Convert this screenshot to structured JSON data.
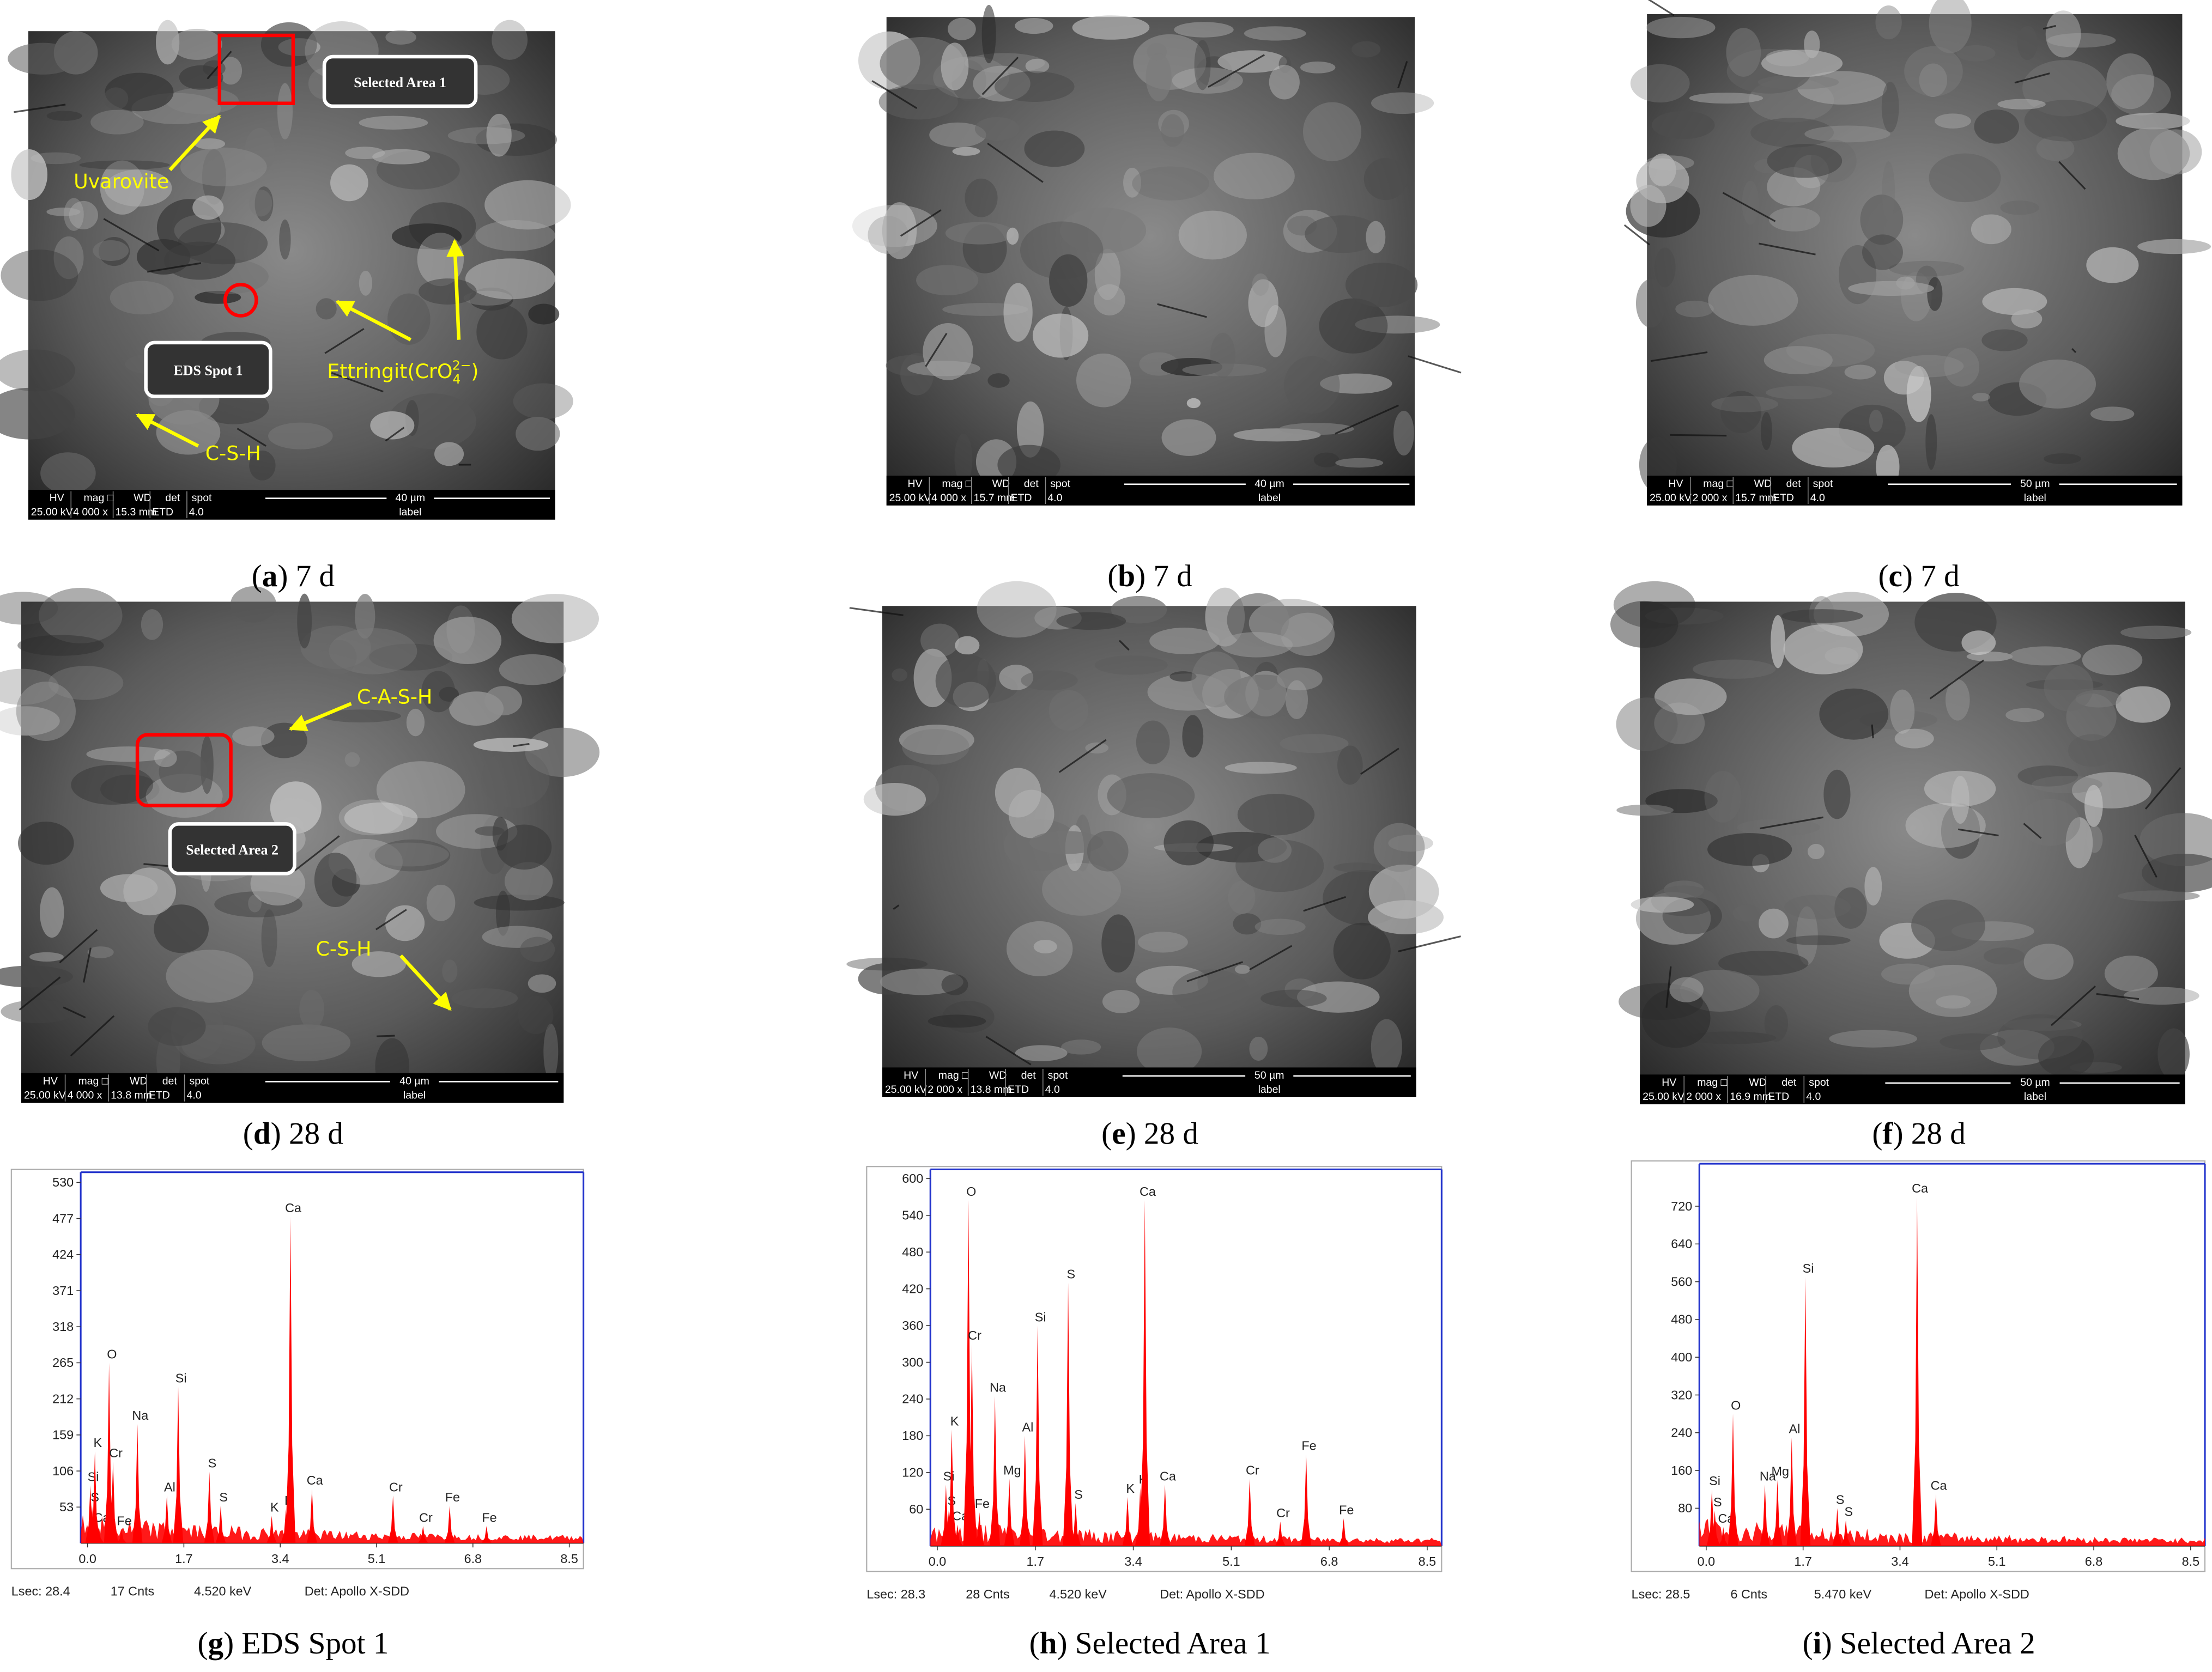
{
  "sem_panels": [
    {
      "scale_bar": {
        "headers": [
          "HV",
          "mag □",
          "WD",
          "det",
          "spot"
        ],
        "values": [
          "25.00 kV",
          "4 000 x",
          "15.3 mm",
          "ETD",
          "4.0"
        ],
        "scale": "40 µm",
        "label": "label"
      },
      "annotations": [
        "Selected Area 1",
        "Uvarovite",
        "EDS Spot 1",
        [
          "Ettringit(CrO",
          "4",
          "2−",
          ")"
        ],
        "C-S-H"
      ]
    },
    {
      "scale_bar": {
        "headers": [
          "HV",
          "mag □",
          "WD",
          "det",
          "spot"
        ],
        "values": [
          "25.00 kV",
          "4 000 x",
          "15.7 mm",
          "ETD",
          "4.0"
        ],
        "scale": "40 µm",
        "label": "label"
      }
    },
    {
      "scale_bar": {
        "headers": [
          "HV",
          "mag □",
          "WD",
          "det",
          "spot"
        ],
        "values": [
          "25.00 kV",
          "2 000 x",
          "15.7 mm",
          "ETD",
          "4.0"
        ],
        "scale": "50 µm",
        "label": "label"
      }
    },
    {
      "scale_bar": {
        "headers": [
          "HV",
          "mag □",
          "WD",
          "det",
          "spot"
        ],
        "values": [
          "25.00 kV",
          "4 000 x",
          "13.8 mm",
          "ETD",
          "4.0"
        ],
        "scale": "40 µm",
        "label": "label"
      },
      "annotations": [
        "C-A-S-H",
        "Selected Area 2",
        "C-S-H"
      ]
    },
    {
      "scale_bar": {
        "headers": [
          "HV",
          "mag □",
          "WD",
          "det",
          "spot"
        ],
        "values": [
          "25.00 kV",
          "2 000 x",
          "13.8 mm",
          "ETD",
          "4.0"
        ],
        "scale": "50 µm",
        "label": "label"
      }
    },
    {
      "scale_bar": {
        "headers": [
          "HV",
          "mag □",
          "WD",
          "det",
          "spot"
        ],
        "values": [
          "25.00 kV",
          "2 000 x",
          "16.9 mm",
          "ETD",
          "4.0"
        ],
        "scale": "50 µm",
        "label": "label"
      }
    }
  ],
  "captions": [
    [
      "(",
      "a",
      ") 7 d"
    ],
    [
      "(",
      "b",
      ") 7 d"
    ],
    [
      "(",
      "c",
      ") 7 d"
    ],
    [
      "(",
      "d",
      ") 28 d"
    ],
    [
      "(",
      "e",
      ") 28 d"
    ],
    [
      "(",
      "f",
      ") 28 d"
    ],
    [
      "(",
      "g",
      ") EDS Spot 1"
    ],
    [
      "(",
      "h",
      ") Selected Area 1"
    ],
    [
      "(",
      "i",
      ") Selected Area 2"
    ]
  ],
  "chart_data": [
    {
      "type": "spectrum",
      "color": "#ff0000",
      "xlim": [
        -0.12,
        8.75
      ],
      "xticks": [
        {
          "value": 0,
          "label": "0.0"
        },
        1.7,
        3.4,
        5.1,
        6.8,
        8.5
      ],
      "ylim": [
        0,
        545
      ],
      "yticks": [
        53,
        106,
        159,
        212,
        265,
        318,
        371,
        424,
        477,
        530
      ],
      "categories": [
        "Si",
        "S",
        "Ca",
        "K",
        "O",
        "Cr",
        "Fe",
        "Na",
        "Al",
        "Si",
        "S",
        "S",
        "K",
        "K",
        "Ca",
        "Ca",
        "Cr",
        "Cr",
        "Fe",
        "Fe"
      ],
      "x": [
        0.05,
        0.08,
        0.2,
        0.13,
        0.38,
        0.45,
        0.6,
        0.88,
        1.4,
        1.6,
        2.15,
        2.35,
        3.25,
        3.5,
        3.58,
        3.96,
        5.39,
        5.92,
        6.39,
        7.04
      ],
      "values": [
        85,
        55,
        25,
        135,
        265,
        120,
        20,
        175,
        70,
        230,
        105,
        55,
        40,
        50,
        480,
        80,
        70,
        25,
        55,
        25
      ],
      "footer": [
        "Lsec: 28.4",
        "17 Cnts",
        "4.520 keV",
        "Det: Apollo X-SDD"
      ]
    },
    {
      "type": "spectrum",
      "color": "#ff0000",
      "xlim": [
        -0.12,
        8.75
      ],
      "xticks": [
        {
          "value": 0,
          "label": "0.0"
        },
        1.7,
        3.4,
        5.1,
        6.8,
        8.5
      ],
      "ylim": [
        0,
        615
      ],
      "yticks": [
        60,
        120,
        180,
        240,
        300,
        360,
        420,
        480,
        540,
        600
      ],
      "categories": [
        "Si",
        "S",
        "Ca",
        "K",
        "O",
        "Cr",
        "Fe",
        "Na",
        "Mg",
        "Al",
        "Si",
        "S",
        "S",
        "K",
        "K",
        "Ca",
        "Ca",
        "Cr",
        "Cr",
        "Fe",
        "Fe"
      ],
      "x": [
        0.15,
        0.2,
        0.35,
        0.25,
        0.54,
        0.6,
        0.73,
        1.0,
        1.25,
        1.52,
        1.74,
        2.27,
        2.4,
        3.3,
        3.52,
        3.6,
        3.95,
        5.42,
        5.95,
        6.4,
        7.05
      ],
      "values": [
        100,
        60,
        35,
        190,
        565,
        330,
        55,
        245,
        110,
        180,
        360,
        430,
        70,
        80,
        95,
        565,
        100,
        110,
        40,
        150,
        45
      ],
      "footer": [
        "Lsec: 28.3",
        "28 Cnts",
        "4.520 keV",
        "Det: Apollo X-SDD"
      ]
    },
    {
      "type": "spectrum",
      "color": "#ff0000",
      "xlim": [
        -0.12,
        8.75
      ],
      "xticks": [
        {
          "value": 0,
          "label": "0.0"
        },
        1.7,
        3.4,
        5.1,
        6.8,
        8.5
      ],
      "ylim": [
        0,
        810
      ],
      "yticks": [
        80,
        160,
        240,
        320,
        400,
        480,
        560,
        640,
        720
      ],
      "categories": [
        "Si",
        "S",
        "Ca",
        "O",
        "Na",
        "Mg",
        "Al",
        "Si",
        "S",
        "S",
        "Ca",
        "Ca"
      ],
      "x": [
        0.1,
        0.15,
        0.3,
        0.47,
        1.03,
        1.25,
        1.5,
        1.74,
        2.3,
        2.45,
        3.7,
        4.03
      ],
      "values": [
        120,
        75,
        40,
        280,
        130,
        140,
        230,
        570,
        80,
        55,
        740,
        110
      ],
      "footer": [
        "Lsec: 28.5",
        "6 Cnts",
        "5.470 keV",
        "Det: Apollo X-SDD"
      ]
    }
  ]
}
